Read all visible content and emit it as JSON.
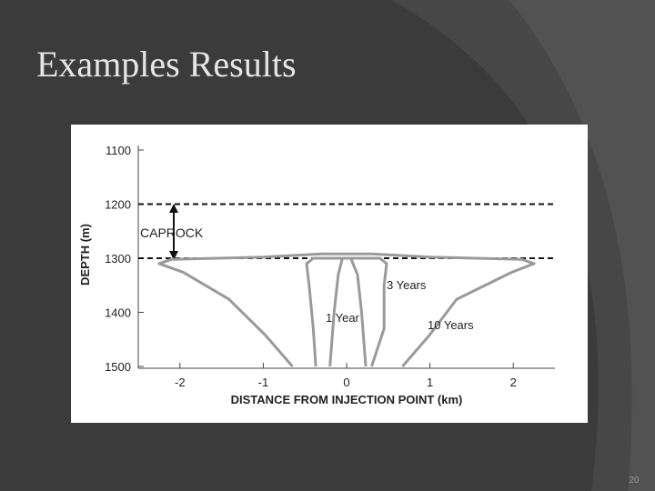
{
  "slide": {
    "title": "Examples Results",
    "page_number": "20"
  },
  "chart_data": {
    "type": "line",
    "xlabel": "DISTANCE FROM INJECTION POINT (km)",
    "ylabel": "DEPTH (m)",
    "xlim": [
      -2.5,
      2.5
    ],
    "xticks": [
      -2,
      -1,
      0,
      1,
      2
    ],
    "ylim": [
      1100,
      1500
    ],
    "yticks": [
      1100,
      1200,
      1300,
      1400,
      1500
    ],
    "y_inverted": true,
    "reference_lines": [
      1200,
      1300
    ],
    "annotation": "CAPROCK",
    "series": [
      {
        "name": "1 Year",
        "color": "#9a9a9a",
        "x": [
          -0.2,
          -0.15,
          -0.1,
          -0.05,
          0.05,
          0.13,
          0.18,
          0.23
        ],
        "values": [
          1500,
          1400,
          1330,
          1300,
          1300,
          1330,
          1400,
          1500
        ]
      },
      {
        "name": "3 Years",
        "color": "#9a9a9a",
        "x": [
          -0.37,
          -0.4,
          -0.45,
          -0.48,
          -0.4,
          0,
          0.4,
          0.48,
          0.45,
          0.45,
          0.3
        ],
        "values": [
          1500,
          1430,
          1350,
          1310,
          1300,
          1300,
          1300,
          1310,
          1350,
          1430,
          1500
        ]
      },
      {
        "name": "10 Years",
        "color": "#9a9a9a",
        "x": [
          -0.65,
          -0.97,
          -1.41,
          -1.96,
          -2.25,
          -2.1,
          -1,
          -0.3,
          0.3,
          1,
          2.1,
          2.25,
          1.98,
          1.32,
          0.99,
          0.67
        ],
        "values": [
          1500,
          1443,
          1376,
          1326,
          1310,
          1302,
          1298,
          1292,
          1292,
          1298,
          1302,
          1310,
          1326,
          1376,
          1443,
          1500
        ]
      }
    ]
  }
}
